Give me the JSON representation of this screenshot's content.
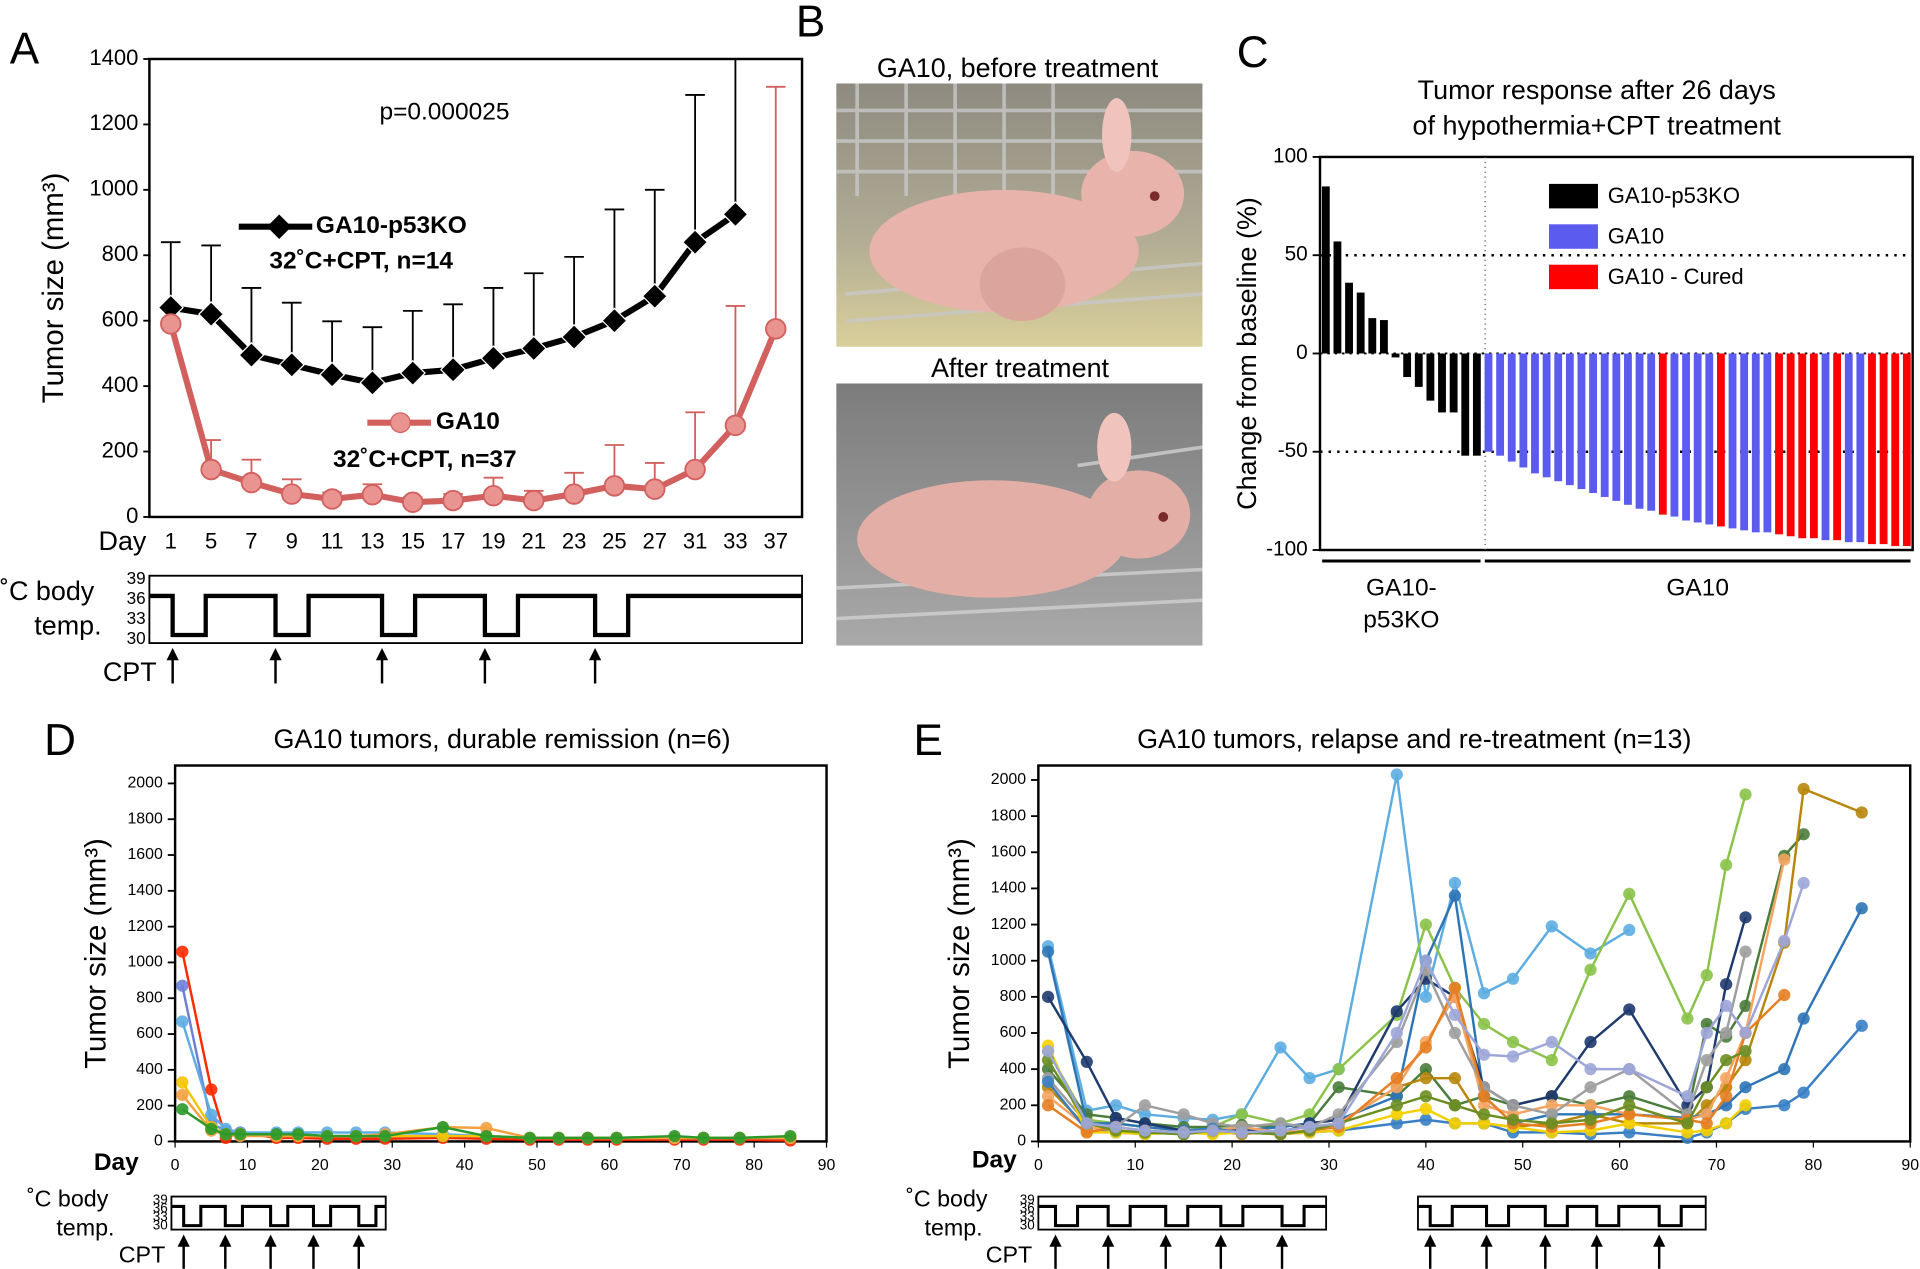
{
  "panel_labels": [
    "A",
    "B",
    "C",
    "D",
    "E"
  ],
  "photos": {
    "before": "GA10, before treatment",
    "after": "After treatment"
  },
  "schematic": {
    "label_top": "˚C body",
    "label_bottom": "temp.",
    "temps": [
      39,
      36,
      33,
      30
    ],
    "drug": "CPT"
  },
  "chart_data": [
    {
      "type": "line",
      "x_label": "Day",
      "y_label": "Tumor size (mm³)",
      "annotation": "p=0.000025",
      "categories": [
        1,
        5,
        7,
        9,
        11,
        13,
        15,
        17,
        19,
        21,
        23,
        25,
        27,
        31,
        33,
        37
      ],
      "ylim": [
        0,
        1400
      ],
      "yticks": [
        0,
        200,
        400,
        600,
        800,
        1000,
        1200,
        1400
      ],
      "series": [
        {
          "name": "GA10-p53KO",
          "condition": "32˚C+CPT, n=14",
          "color": "#000000",
          "marker": "diamond",
          "values": [
            640,
            620,
            495,
            465,
            435,
            410,
            440,
            450,
            485,
            515,
            550,
            600,
            675,
            840,
            925,
            null
          ],
          "errors": [
            200,
            210,
            205,
            190,
            163,
            170,
            190,
            200,
            215,
            230,
            245,
            340,
            325,
            450,
            560,
            null
          ]
        },
        {
          "name": "GA10",
          "condition": "32˚C+CPT, n=37",
          "color": "#d1605e",
          "marker": "circle",
          "values": [
            590,
            145,
            105,
            70,
            55,
            68,
            45,
            50,
            65,
            50,
            70,
            95,
            85,
            145,
            280,
            575
          ],
          "errors": [
            null,
            90,
            70,
            45,
            20,
            32,
            15,
            20,
            55,
            30,
            65,
            125,
            80,
            175,
            365,
            740
          ]
        }
      ]
    },
    {
      "type": "bar",
      "title": [
        "Tumor response after 26 days",
        "of hypothermia+CPT treatment"
      ],
      "y_label": "Change from baseline (%)",
      "ylim": [
        -100,
        100
      ],
      "yticks": [
        -100,
        -50,
        0,
        50,
        100
      ],
      "reference_lines": [
        50,
        -50
      ],
      "groups": [
        [
          "GA10-",
          "p53KO"
        ],
        [
          "GA10"
        ]
      ],
      "series": [
        {
          "name": "GA10-p53KO",
          "color": "#000000",
          "values": [
            85,
            57,
            36,
            31,
            18,
            17,
            -2,
            -12,
            -17,
            -24,
            -30,
            -30,
            -52,
            -52,
            null,
            null,
            null,
            null,
            null,
            null,
            null,
            null,
            null,
            null,
            null,
            null,
            null,
            null,
            null,
            null,
            null,
            null,
            null,
            null,
            null,
            null,
            null,
            null,
            null,
            null,
            null,
            null,
            null,
            null,
            null,
            null,
            null,
            null,
            null,
            null,
            null
          ]
        },
        {
          "name": "GA10",
          "color": "#5b5bf0",
          "values": [
            null,
            null,
            null,
            null,
            null,
            null,
            null,
            null,
            null,
            null,
            null,
            null,
            null,
            null,
            -50,
            -52,
            -55,
            -58,
            -61,
            -63,
            -65,
            -67,
            -69,
            -71,
            -73,
            -75,
            -77,
            -79,
            -80,
            null,
            -83,
            -85,
            -86,
            -87,
            null,
            -89,
            -90,
            -91,
            -91,
            null,
            null,
            null,
            null,
            -95,
            null,
            -96,
            -96,
            null,
            null,
            null,
            null
          ]
        },
        {
          "name": "GA10 - Cured",
          "color": "#ff0000",
          "values": [
            null,
            null,
            null,
            null,
            null,
            null,
            null,
            null,
            null,
            null,
            null,
            null,
            null,
            null,
            null,
            null,
            null,
            null,
            null,
            null,
            null,
            null,
            null,
            null,
            null,
            null,
            null,
            null,
            null,
            -82,
            null,
            null,
            null,
            null,
            -88,
            null,
            null,
            null,
            null,
            -92,
            -93,
            -94,
            -94,
            null,
            -95,
            null,
            null,
            -97,
            -97,
            -98,
            -98
          ]
        }
      ]
    },
    {
      "type": "line",
      "title": "GA10 tumors, durable remission (n=6)",
      "x_label": "Day",
      "y_label": "Tumor size (mm³)",
      "xlim": [
        0,
        90
      ],
      "xticks": [
        0,
        10,
        20,
        30,
        40,
        50,
        60,
        70,
        80,
        90
      ],
      "ylim": [
        0,
        2100
      ],
      "yticks": [
        0,
        200,
        400,
        600,
        800,
        1000,
        1200,
        1400,
        1600,
        1800,
        2000
      ],
      "x": [
        1,
        5,
        7,
        9,
        14,
        17,
        21,
        25,
        29,
        37,
        43,
        49,
        53,
        57,
        61,
        69,
        73,
        78,
        85
      ],
      "series": [
        {
          "color": "#ff2a00",
          "values": [
            1060,
            290,
            20,
            50,
            20,
            20,
            15,
            15,
            15,
            20,
            15,
            10,
            10,
            10,
            10,
            10,
            10,
            10,
            5
          ]
        },
        {
          "color": "#6b7fd7",
          "values": [
            870,
            100,
            60,
            40,
            40,
            40,
            30,
            30,
            30,
            30,
            30,
            20,
            20,
            20,
            20,
            20,
            20,
            20,
            20
          ]
        },
        {
          "color": "#5dade2",
          "values": [
            670,
            150,
            70,
            50,
            50,
            50,
            50,
            50,
            50,
            40,
            30,
            20,
            20,
            20,
            20,
            20,
            20,
            20,
            20
          ]
        },
        {
          "color": "#f5c400",
          "values": [
            330,
            80,
            40,
            40,
            30,
            30,
            30,
            30,
            30,
            30,
            30,
            20,
            20,
            20,
            20,
            20,
            20,
            20,
            20
          ]
        },
        {
          "color": "#f5a040",
          "values": [
            260,
            60,
            40,
            30,
            30,
            30,
            30,
            30,
            40,
            80,
            75,
            20,
            20,
            20,
            20,
            20,
            20,
            20,
            20
          ]
        },
        {
          "color": "#2a9a2a",
          "values": [
            180,
            70,
            40,
            40,
            40,
            40,
            30,
            30,
            30,
            80,
            30,
            20,
            20,
            20,
            20,
            30,
            20,
            20,
            30
          ]
        }
      ]
    },
    {
      "type": "line",
      "title": "GA10 tumors, relapse and re-treatment (n=13)",
      "x_label": "Day",
      "y_label": "Tumor size (mm³)",
      "xlim": [
        0,
        90
      ],
      "xticks": [
        0,
        10,
        20,
        30,
        40,
        50,
        60,
        70,
        80,
        90
      ],
      "ylim": [
        0,
        2080
      ],
      "yticks": [
        0,
        200,
        400,
        600,
        800,
        1000,
        1200,
        1400,
        1600,
        1800,
        2000
      ],
      "x": [
        1,
        5,
        8,
        11,
        15,
        18,
        21,
        25,
        28,
        31,
        37,
        40,
        43,
        46,
        49,
        53,
        57,
        61,
        67,
        69,
        71,
        73,
        77,
        79,
        85
      ],
      "series": [
        {
          "color": "#5dade2",
          "values": [
            1080,
            170,
            200,
            150,
            130,
            120,
            150,
            520,
            350,
            400,
            2030,
            800,
            1430,
            820,
            900,
            1190,
            1040,
            1170,
            null,
            null,
            null,
            null,
            null,
            null,
            null
          ]
        },
        {
          "color": "#8bc34a",
          "values": [
            500,
            120,
            100,
            80,
            60,
            80,
            150,
            100,
            150,
            400,
            700,
            1200,
            850,
            650,
            550,
            450,
            950,
            1370,
            680,
            920,
            1530,
            1920,
            null,
            null,
            null
          ]
        },
        {
          "color": "#4a7c3a",
          "values": [
            400,
            150,
            130,
            100,
            80,
            80,
            90,
            80,
            100,
            300,
            250,
            400,
            200,
            250,
            200,
            250,
            200,
            250,
            150,
            650,
            580,
            750,
            1580,
            1700,
            null
          ]
        },
        {
          "color": "#b8860b",
          "values": [
            300,
            80,
            60,
            50,
            40,
            60,
            40,
            60,
            80,
            100,
            300,
            350,
            350,
            100,
            80,
            100,
            150,
            100,
            100,
            200,
            300,
            450,
            1100,
            1950,
            1820
          ]
        },
        {
          "color": "#2e75b6",
          "values": [
            1050,
            100,
            100,
            80,
            60,
            70,
            60,
            80,
            100,
            120,
            250,
            1000,
            1360,
            250,
            100,
            150,
            150,
            150,
            130,
            150,
            200,
            300,
            400,
            680,
            1290
          ]
        },
        {
          "color": "#1f3a6e",
          "values": [
            800,
            440,
            130,
            100,
            60,
            50,
            60,
            50,
            100,
            120,
            720,
            900,
            800,
            300,
            200,
            250,
            550,
            730,
            200,
            300,
            870,
            1240,
            null,
            null,
            null
          ]
        },
        {
          "color": "#f4a460",
          "values": [
            250,
            80,
            60,
            50,
            50,
            60,
            80,
            50,
            60,
            100,
            300,
            550,
            800,
            200,
            150,
            200,
            200,
            150,
            120,
            150,
            350,
            600,
            1560,
            null,
            null
          ]
        },
        {
          "color": "#9e9e9e",
          "values": [
            350,
            100,
            80,
            200,
            150,
            100,
            80,
            100,
            80,
            150,
            550,
            950,
            600,
            300,
            200,
            150,
            300,
            400,
            150,
            450,
            600,
            1050,
            null,
            null,
            null
          ]
        },
        {
          "color": "#3a7fc4",
          "values": [
            330,
            60,
            50,
            40,
            60,
            70,
            50,
            40,
            50,
            60,
            100,
            120,
            100,
            100,
            50,
            50,
            40,
            50,
            20,
            50,
            100,
            180,
            200,
            270,
            640
          ]
        },
        {
          "color": "#f5d000",
          "values": [
            530,
            50,
            50,
            40,
            50,
            40,
            50,
            40,
            50,
            60,
            150,
            180,
            100,
            100,
            80,
            50,
            60,
            100,
            50,
            60,
            100,
            200,
            null,
            null,
            null
          ]
        },
        {
          "color": "#e67e22",
          "values": [
            200,
            50,
            80,
            60,
            50,
            60,
            50,
            40,
            60,
            80,
            350,
            520,
            850,
            250,
            100,
            80,
            100,
            150,
            120,
            100,
            250,
            600,
            810,
            null,
            null
          ]
        },
        {
          "color": "#6b8e23",
          "values": [
            450,
            100,
            60,
            50,
            40,
            60,
            50,
            40,
            60,
            100,
            200,
            250,
            200,
            150,
            120,
            100,
            120,
            200,
            100,
            300,
            450,
            500,
            null,
            null,
            null
          ]
        },
        {
          "color": "#9da6d8",
          "values": [
            500,
            100,
            80,
            60,
            50,
            60,
            50,
            60,
            80,
            100,
            600,
            1000,
            700,
            480,
            470,
            550,
            400,
            400,
            250,
            600,
            750,
            600,
            1110,
            1430,
            null
          ]
        }
      ]
    }
  ]
}
